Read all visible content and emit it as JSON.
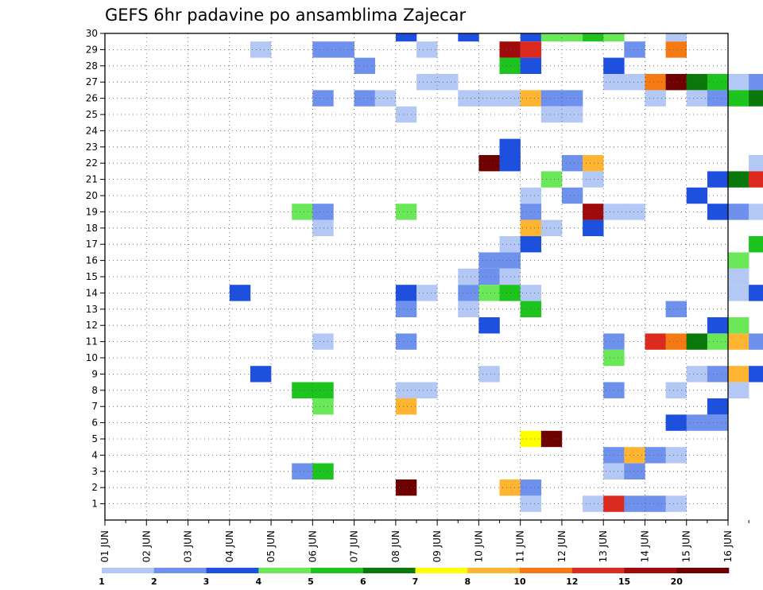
{
  "chart_data": {
    "type": "heatmap",
    "title": "GEFS 6hr padavine po ansamblima Zajecar",
    "x_labels": [
      "01 JUN",
      "02 JUN",
      "03 JUN",
      "04 JUN",
      "05 JUN",
      "06 JUN",
      "07 JUN",
      "08 JUN",
      "09 JUN",
      "10 JUN",
      "11 JUN",
      "12 JUN",
      "13 JUN",
      "14 JUN",
      "15 JUN",
      "16 JUN"
    ],
    "y_ticks": [
      1,
      2,
      3,
      4,
      5,
      6,
      7,
      8,
      9,
      10,
      11,
      12,
      13,
      14,
      15,
      16,
      17,
      18,
      19,
      20,
      21,
      22,
      23,
      24,
      25,
      26,
      27,
      28,
      29,
      30
    ],
    "ylim": [
      0,
      30
    ],
    "grid": true,
    "legend": {
      "position": "bottom",
      "thresholds": [
        "1",
        "2",
        "3",
        "4",
        "5",
        "6",
        "7",
        "8",
        "10",
        "12",
        "15",
        "20"
      ],
      "colors": [
        "#b4c8f5",
        "#6e91ee",
        "#1e50e0",
        "#6ae85a",
        "#1ec41e",
        "#0a780a",
        "#ffff00",
        "#ffb432",
        "#f57a14",
        "#dc2a1e",
        "#a00a0a",
        "#6e0000"
      ]
    },
    "cells": [
      [
        8,
        30,
        2
      ],
      [
        9.5,
        30,
        2
      ],
      [
        11,
        30,
        2
      ],
      [
        11.5,
        30,
        3
      ],
      [
        12,
        30,
        3
      ],
      [
        12.5,
        30,
        4
      ],
      [
        13,
        30,
        3
      ],
      [
        14.5,
        30,
        0
      ],
      [
        4.5,
        29,
        0
      ],
      [
        6,
        29,
        1
      ],
      [
        6.5,
        29,
        1
      ],
      [
        8.5,
        29,
        0
      ],
      [
        10.5,
        29,
        10
      ],
      [
        11,
        29,
        9
      ],
      [
        13.5,
        29,
        1
      ],
      [
        14.5,
        29,
        8
      ],
      [
        7,
        28,
        1
      ],
      [
        10.5,
        28,
        4
      ],
      [
        11,
        28,
        2
      ],
      [
        13,
        28,
        2
      ],
      [
        20,
        28,
        2
      ],
      [
        8.5,
        27,
        0
      ],
      [
        9,
        27,
        0
      ],
      [
        13,
        27,
        0
      ],
      [
        13.5,
        27,
        0
      ],
      [
        14,
        27,
        8
      ],
      [
        14.5,
        27,
        11
      ],
      [
        15,
        27,
        5
      ],
      [
        15.5,
        27,
        4
      ],
      [
        16,
        27,
        0
      ],
      [
        16.5,
        27,
        1
      ],
      [
        17,
        27,
        6
      ],
      [
        17.5,
        27,
        0
      ],
      [
        18,
        27,
        2
      ],
      [
        18.5,
        27,
        2
      ],
      [
        19,
        27,
        1
      ],
      [
        19.5,
        27,
        1
      ],
      [
        20,
        27,
        6
      ],
      [
        20.5,
        27,
        3
      ],
      [
        21,
        27,
        5
      ],
      [
        21.5,
        27,
        1
      ],
      [
        6,
        26,
        1
      ],
      [
        7,
        26,
        1
      ],
      [
        7.5,
        26,
        0
      ],
      [
        9.5,
        26,
        0
      ],
      [
        10,
        26,
        0
      ],
      [
        10.5,
        26,
        0
      ],
      [
        11,
        26,
        7
      ],
      [
        11.5,
        26,
        1
      ],
      [
        12,
        26,
        1
      ],
      [
        14,
        26,
        0
      ],
      [
        15,
        26,
        0
      ],
      [
        15.5,
        26,
        1
      ],
      [
        16,
        26,
        4
      ],
      [
        16.5,
        26,
        5
      ],
      [
        17,
        26,
        0
      ],
      [
        17.5,
        26,
        2
      ],
      [
        18,
        26,
        1
      ],
      [
        18.5,
        26,
        0
      ],
      [
        20,
        26,
        0
      ],
      [
        8,
        25,
        0
      ],
      [
        11.5,
        25,
        0
      ],
      [
        12,
        25,
        0
      ],
      [
        19,
        25,
        3
      ],
      [
        19.5,
        25,
        3
      ],
      [
        20.5,
        25,
        0
      ],
      [
        10.5,
        23,
        2
      ],
      [
        17,
        23,
        0
      ],
      [
        21,
        23,
        0
      ],
      [
        22.5,
        23,
        3
      ],
      [
        10,
        22,
        11
      ],
      [
        10.5,
        22,
        2
      ],
      [
        12,
        22,
        1
      ],
      [
        12.5,
        22,
        7
      ],
      [
        16.5,
        22,
        0
      ],
      [
        17.5,
        22,
        3
      ],
      [
        19.5,
        22,
        0
      ],
      [
        11.5,
        21,
        3
      ],
      [
        12.5,
        21,
        0
      ],
      [
        15.5,
        21,
        2
      ],
      [
        16,
        21,
        5
      ],
      [
        16.5,
        21,
        9
      ],
      [
        17,
        21,
        6
      ],
      [
        17.5,
        21,
        4
      ],
      [
        18,
        21,
        8
      ],
      [
        18.5,
        21,
        1
      ],
      [
        19,
        21,
        0
      ],
      [
        11,
        20,
        0
      ],
      [
        12,
        20,
        1
      ],
      [
        15,
        20,
        2
      ],
      [
        24.5,
        20,
        2
      ],
      [
        5.5,
        19,
        3
      ],
      [
        6,
        19,
        1
      ],
      [
        8,
        19,
        3
      ],
      [
        11,
        19,
        1
      ],
      [
        12.5,
        19,
        10
      ],
      [
        13,
        19,
        0
      ],
      [
        13.5,
        19,
        0
      ],
      [
        15.5,
        19,
        2
      ],
      [
        16,
        19,
        1
      ],
      [
        16.5,
        19,
        0
      ],
      [
        17.5,
        19,
        1
      ],
      [
        18,
        19,
        4
      ],
      [
        6,
        18,
        0
      ],
      [
        11,
        18,
        7
      ],
      [
        11.5,
        18,
        0
      ],
      [
        12.5,
        18,
        2
      ],
      [
        18.5,
        18,
        1
      ],
      [
        19,
        18,
        4
      ],
      [
        19.5,
        18,
        2
      ],
      [
        20,
        18,
        1
      ],
      [
        20.5,
        18,
        5
      ],
      [
        21,
        18,
        7
      ],
      [
        21.5,
        18,
        5
      ],
      [
        22,
        18,
        7
      ],
      [
        22.5,
        18,
        7
      ],
      [
        10.5,
        17,
        0
      ],
      [
        11,
        17,
        2
      ],
      [
        16.5,
        17,
        4
      ],
      [
        17,
        17,
        0
      ],
      [
        17.5,
        17,
        0
      ],
      [
        19.5,
        17,
        1
      ],
      [
        10,
        16,
        1
      ],
      [
        10.5,
        16,
        1
      ],
      [
        16,
        16,
        3
      ],
      [
        21,
        16,
        0
      ],
      [
        9.5,
        15,
        0
      ],
      [
        10,
        15,
        1
      ],
      [
        10.5,
        15,
        0
      ],
      [
        16,
        15,
        0
      ],
      [
        21,
        15,
        0
      ],
      [
        4,
        14,
        2
      ],
      [
        8,
        14,
        2
      ],
      [
        8.5,
        14,
        0
      ],
      [
        9.5,
        14,
        1
      ],
      [
        10,
        14,
        3
      ],
      [
        10.5,
        14,
        4
      ],
      [
        11,
        14,
        0
      ],
      [
        16,
        14,
        0
      ],
      [
        16.5,
        14,
        2
      ],
      [
        25,
        14,
        2
      ],
      [
        8,
        13,
        1
      ],
      [
        9.5,
        13,
        0
      ],
      [
        11,
        13,
        4
      ],
      [
        14.5,
        13,
        1
      ],
      [
        20.5,
        13,
        0
      ],
      [
        21,
        13,
        3
      ],
      [
        10,
        12,
        2
      ],
      [
        15.5,
        12,
        2
      ],
      [
        16,
        12,
        3
      ],
      [
        19.5,
        12,
        0
      ],
      [
        20,
        12,
        1
      ],
      [
        6,
        11,
        0
      ],
      [
        8,
        11,
        1
      ],
      [
        13,
        11,
        1
      ],
      [
        14,
        11,
        9
      ],
      [
        14.5,
        11,
        8
      ],
      [
        15,
        11,
        5
      ],
      [
        15.5,
        11,
        3
      ],
      [
        16,
        11,
        7
      ],
      [
        16.5,
        11,
        1
      ],
      [
        17,
        11,
        1
      ],
      [
        17.5,
        11,
        5
      ],
      [
        13,
        10,
        3
      ],
      [
        23,
        10,
        2
      ],
      [
        24,
        10,
        0
      ],
      [
        4.5,
        9,
        2
      ],
      [
        10,
        9,
        0
      ],
      [
        15,
        9,
        0
      ],
      [
        15.5,
        9,
        1
      ],
      [
        16,
        9,
        7
      ],
      [
        16.5,
        9,
        2
      ],
      [
        23,
        9,
        3
      ],
      [
        5.5,
        8,
        4
      ],
      [
        6,
        8,
        4
      ],
      [
        8,
        8,
        0
      ],
      [
        8.5,
        8,
        0
      ],
      [
        13,
        8,
        1
      ],
      [
        14.5,
        8,
        0
      ],
      [
        16,
        8,
        0
      ],
      [
        6,
        7,
        3
      ],
      [
        8,
        7,
        7
      ],
      [
        15.5,
        7,
        2
      ],
      [
        17.5,
        7,
        3
      ],
      [
        18,
        7,
        3
      ],
      [
        18.5,
        7,
        0
      ],
      [
        14.5,
        6,
        2
      ],
      [
        15,
        6,
        1
      ],
      [
        15.5,
        6,
        1
      ],
      [
        17,
        6,
        2
      ],
      [
        19.5,
        6,
        3
      ],
      [
        24.5,
        6,
        4
      ],
      [
        11,
        5,
        6
      ],
      [
        11.5,
        5,
        11
      ],
      [
        19.5,
        5,
        3
      ],
      [
        21.5,
        5,
        7
      ],
      [
        22.5,
        5,
        0
      ],
      [
        24.5,
        5,
        1
      ],
      [
        13,
        4,
        1
      ],
      [
        13.5,
        4,
        7
      ],
      [
        14,
        4,
        1
      ],
      [
        14.5,
        4,
        0
      ],
      [
        21.5,
        4,
        4
      ],
      [
        22,
        4,
        3
      ],
      [
        5.5,
        3,
        1
      ],
      [
        6,
        3,
        4
      ],
      [
        13,
        3,
        0
      ],
      [
        13.5,
        3,
        1
      ],
      [
        23.5,
        3,
        0
      ],
      [
        8,
        2,
        11
      ],
      [
        10.5,
        2,
        7
      ],
      [
        11,
        2,
        1
      ],
      [
        11,
        1,
        0
      ],
      [
        12.5,
        1,
        0
      ],
      [
        13,
        1,
        9
      ],
      [
        13.5,
        1,
        1
      ],
      [
        14,
        1,
        1
      ],
      [
        14.5,
        1,
        0
      ],
      [
        21,
        1,
        0
      ],
      [
        19.5,
        0,
        0
      ],
      [
        23.5,
        0,
        2
      ],
      [
        24,
        0,
        7
      ],
      [
        24.5,
        0,
        0
      ]
    ]
  }
}
